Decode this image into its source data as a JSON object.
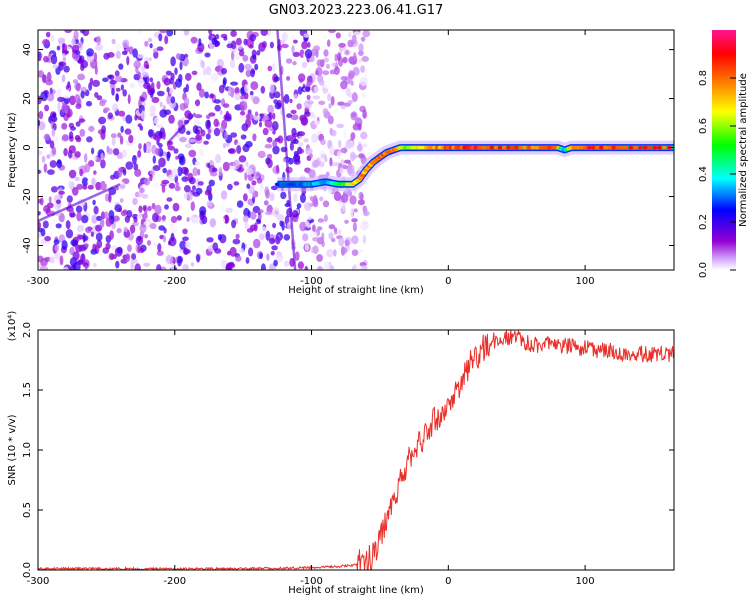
{
  "title": "GN03.2023.223.06.41.G17",
  "chart_data": [
    {
      "type": "heatmap",
      "title": "GN03.2023.223.06.41.G17",
      "xlabel": "Height of straight line (km)",
      "ylabel": "Frequency (Hz)",
      "xlim": [
        -300,
        165
      ],
      "ylim": [
        -50,
        48
      ],
      "xticks": [
        -300,
        -200,
        -100,
        0,
        100
      ],
      "xtick_labels": [
        "-300",
        "-200",
        "-100",
        "0",
        "100"
      ],
      "yticks": [
        -40,
        -20,
        0,
        20,
        40
      ],
      "ytick_labels": [
        "-40",
        "-20",
        "0",
        "20",
        "40"
      ],
      "colorbar": {
        "label": "Normalized spectral amplitude",
        "range": [
          0,
          1
        ],
        "ticks": [
          0.0,
          0.2,
          0.4,
          0.6,
          0.8
        ],
        "tick_labels": [
          "0.0",
          "0.2",
          "0.4",
          "0.6",
          "0.8"
        ],
        "colors": [
          "#ffffff",
          "#9400d3",
          "#0000ff",
          "#00ffff",
          "#00ff00",
          "#ffff00",
          "#ff7f00",
          "#ff0000",
          "#ff1493"
        ]
      },
      "trace": {
        "x": [
          -125,
          -110,
          -100,
          -90,
          -80,
          -70,
          -65,
          -60,
          -55,
          -50,
          -45,
          -40,
          -35,
          -30,
          -20,
          0,
          20,
          50,
          80,
          85,
          90,
          100,
          130,
          165
        ],
        "y": [
          -15,
          -15,
          -15,
          -14,
          -15,
          -15,
          -13,
          -9,
          -6,
          -4,
          -2,
          -1,
          0,
          0,
          0,
          0,
          0,
          0,
          0,
          -1,
          0,
          0,
          0,
          0
        ],
        "amplitude": [
          0.3,
          0.3,
          0.35,
          0.35,
          0.5,
          0.7,
          0.75,
          0.8,
          0.8,
          0.85,
          0.85,
          0.85,
          0.7,
          0.6,
          0.75,
          0.85,
          0.9,
          0.9,
          0.8,
          0.3,
          0.8,
          0.9,
          0.9,
          0.9
        ]
      },
      "noise_region_x": [
        -300,
        -75
      ]
    },
    {
      "type": "line",
      "xlabel": "Height of straight line (km)",
      "ylabel": "SNR (10 * v/v)",
      "y_multiplier_label": "(x10⁴)",
      "xlim": [
        -300,
        165
      ],
      "ylim": [
        0.0,
        2.0
      ],
      "xticks": [
        -300,
        -200,
        -100,
        0,
        100
      ],
      "xtick_labels": [
        "-300",
        "-200",
        "-100",
        "0",
        "100"
      ],
      "yticks": [
        0.0,
        0.5,
        1.0,
        1.5,
        2.0
      ],
      "ytick_labels": [
        "0.0",
        "0.5",
        "1.0",
        "1.5",
        "2.0"
      ],
      "color": "#e8302a",
      "series": [
        {
          "x": [
            -300,
            -250,
            -200,
            -150,
            -100,
            -80,
            -70,
            -60,
            -55,
            -50,
            -45,
            -40,
            -35,
            -30,
            -25,
            -20,
            -15,
            -10,
            -5,
            0,
            5,
            10,
            15,
            20,
            25,
            30,
            40,
            50,
            60,
            80,
            100,
            120,
            140,
            165
          ],
          "y": [
            0.01,
            0.01,
            0.01,
            0.01,
            0.02,
            0.03,
            0.04,
            0.07,
            0.13,
            0.25,
            0.45,
            0.6,
            0.75,
            0.9,
            1.0,
            1.05,
            1.15,
            1.25,
            1.3,
            1.35,
            1.45,
            1.55,
            1.7,
            1.75,
            1.85,
            1.9,
            1.93,
            1.95,
            1.88,
            1.87,
            1.85,
            1.82,
            1.8,
            1.8
          ]
        }
      ]
    }
  ]
}
